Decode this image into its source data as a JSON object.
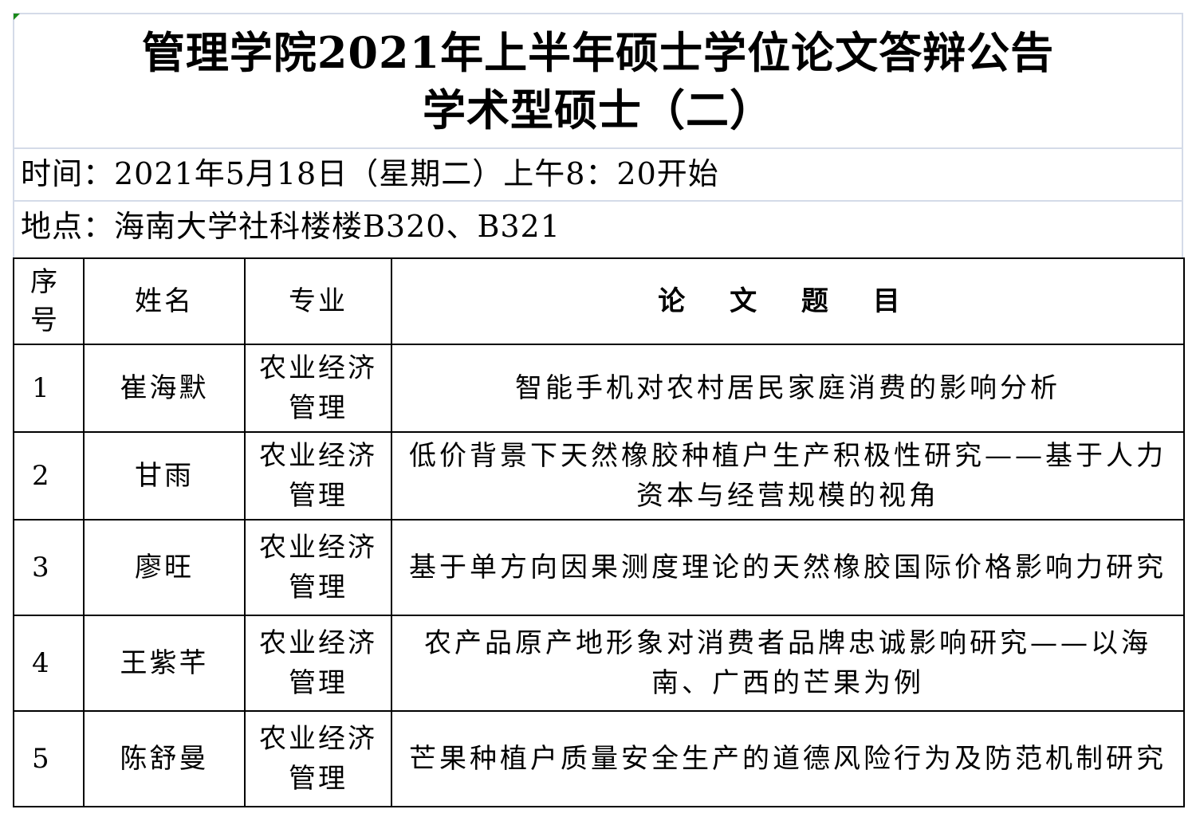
{
  "header": {
    "title_line1": "管理学院2021年上半年硕士学位论文答辩公告",
    "title_line2": "学术型硕士（二）",
    "time": "时间：2021年5月18日（星期二）上午8：20开始",
    "location": "地点：海南大学社科楼楼B320、B321"
  },
  "table": {
    "columns": [
      "序号",
      "姓名",
      "专业",
      "论 文 题 目"
    ],
    "rows": [
      {
        "no": "1",
        "name": "崔海默",
        "major": "农业经济管理",
        "thesis": "智能手机对农村居民家庭消费的影响分析"
      },
      {
        "no": "2",
        "name": "甘雨",
        "major": "农业经济管理",
        "thesis": "低价背景下天然橡胶种植户生产积极性研究——基于人力资本与经营规模的视角"
      },
      {
        "no": "3",
        "name": "廖旺",
        "major": "农业经济管理",
        "thesis": "基于单方向因果测度理论的天然橡胶国际价格影响力研究"
      },
      {
        "no": "4",
        "name": "王紫芊",
        "major": "农业经济管理",
        "thesis": "农产品原产地形象对消费者品牌忠诚影响研究——以海南、广西的芒果为例"
      },
      {
        "no": "5",
        "name": "陈舒曼",
        "major": "农业经济管理",
        "thesis": "芒果种植户质量安全生产的道德风险行为及防范机制研究"
      }
    ]
  },
  "colors": {
    "grid_light": "#d4dbe8",
    "grid_dark": "#000000",
    "cell_marker": "#1a8a1a"
  }
}
